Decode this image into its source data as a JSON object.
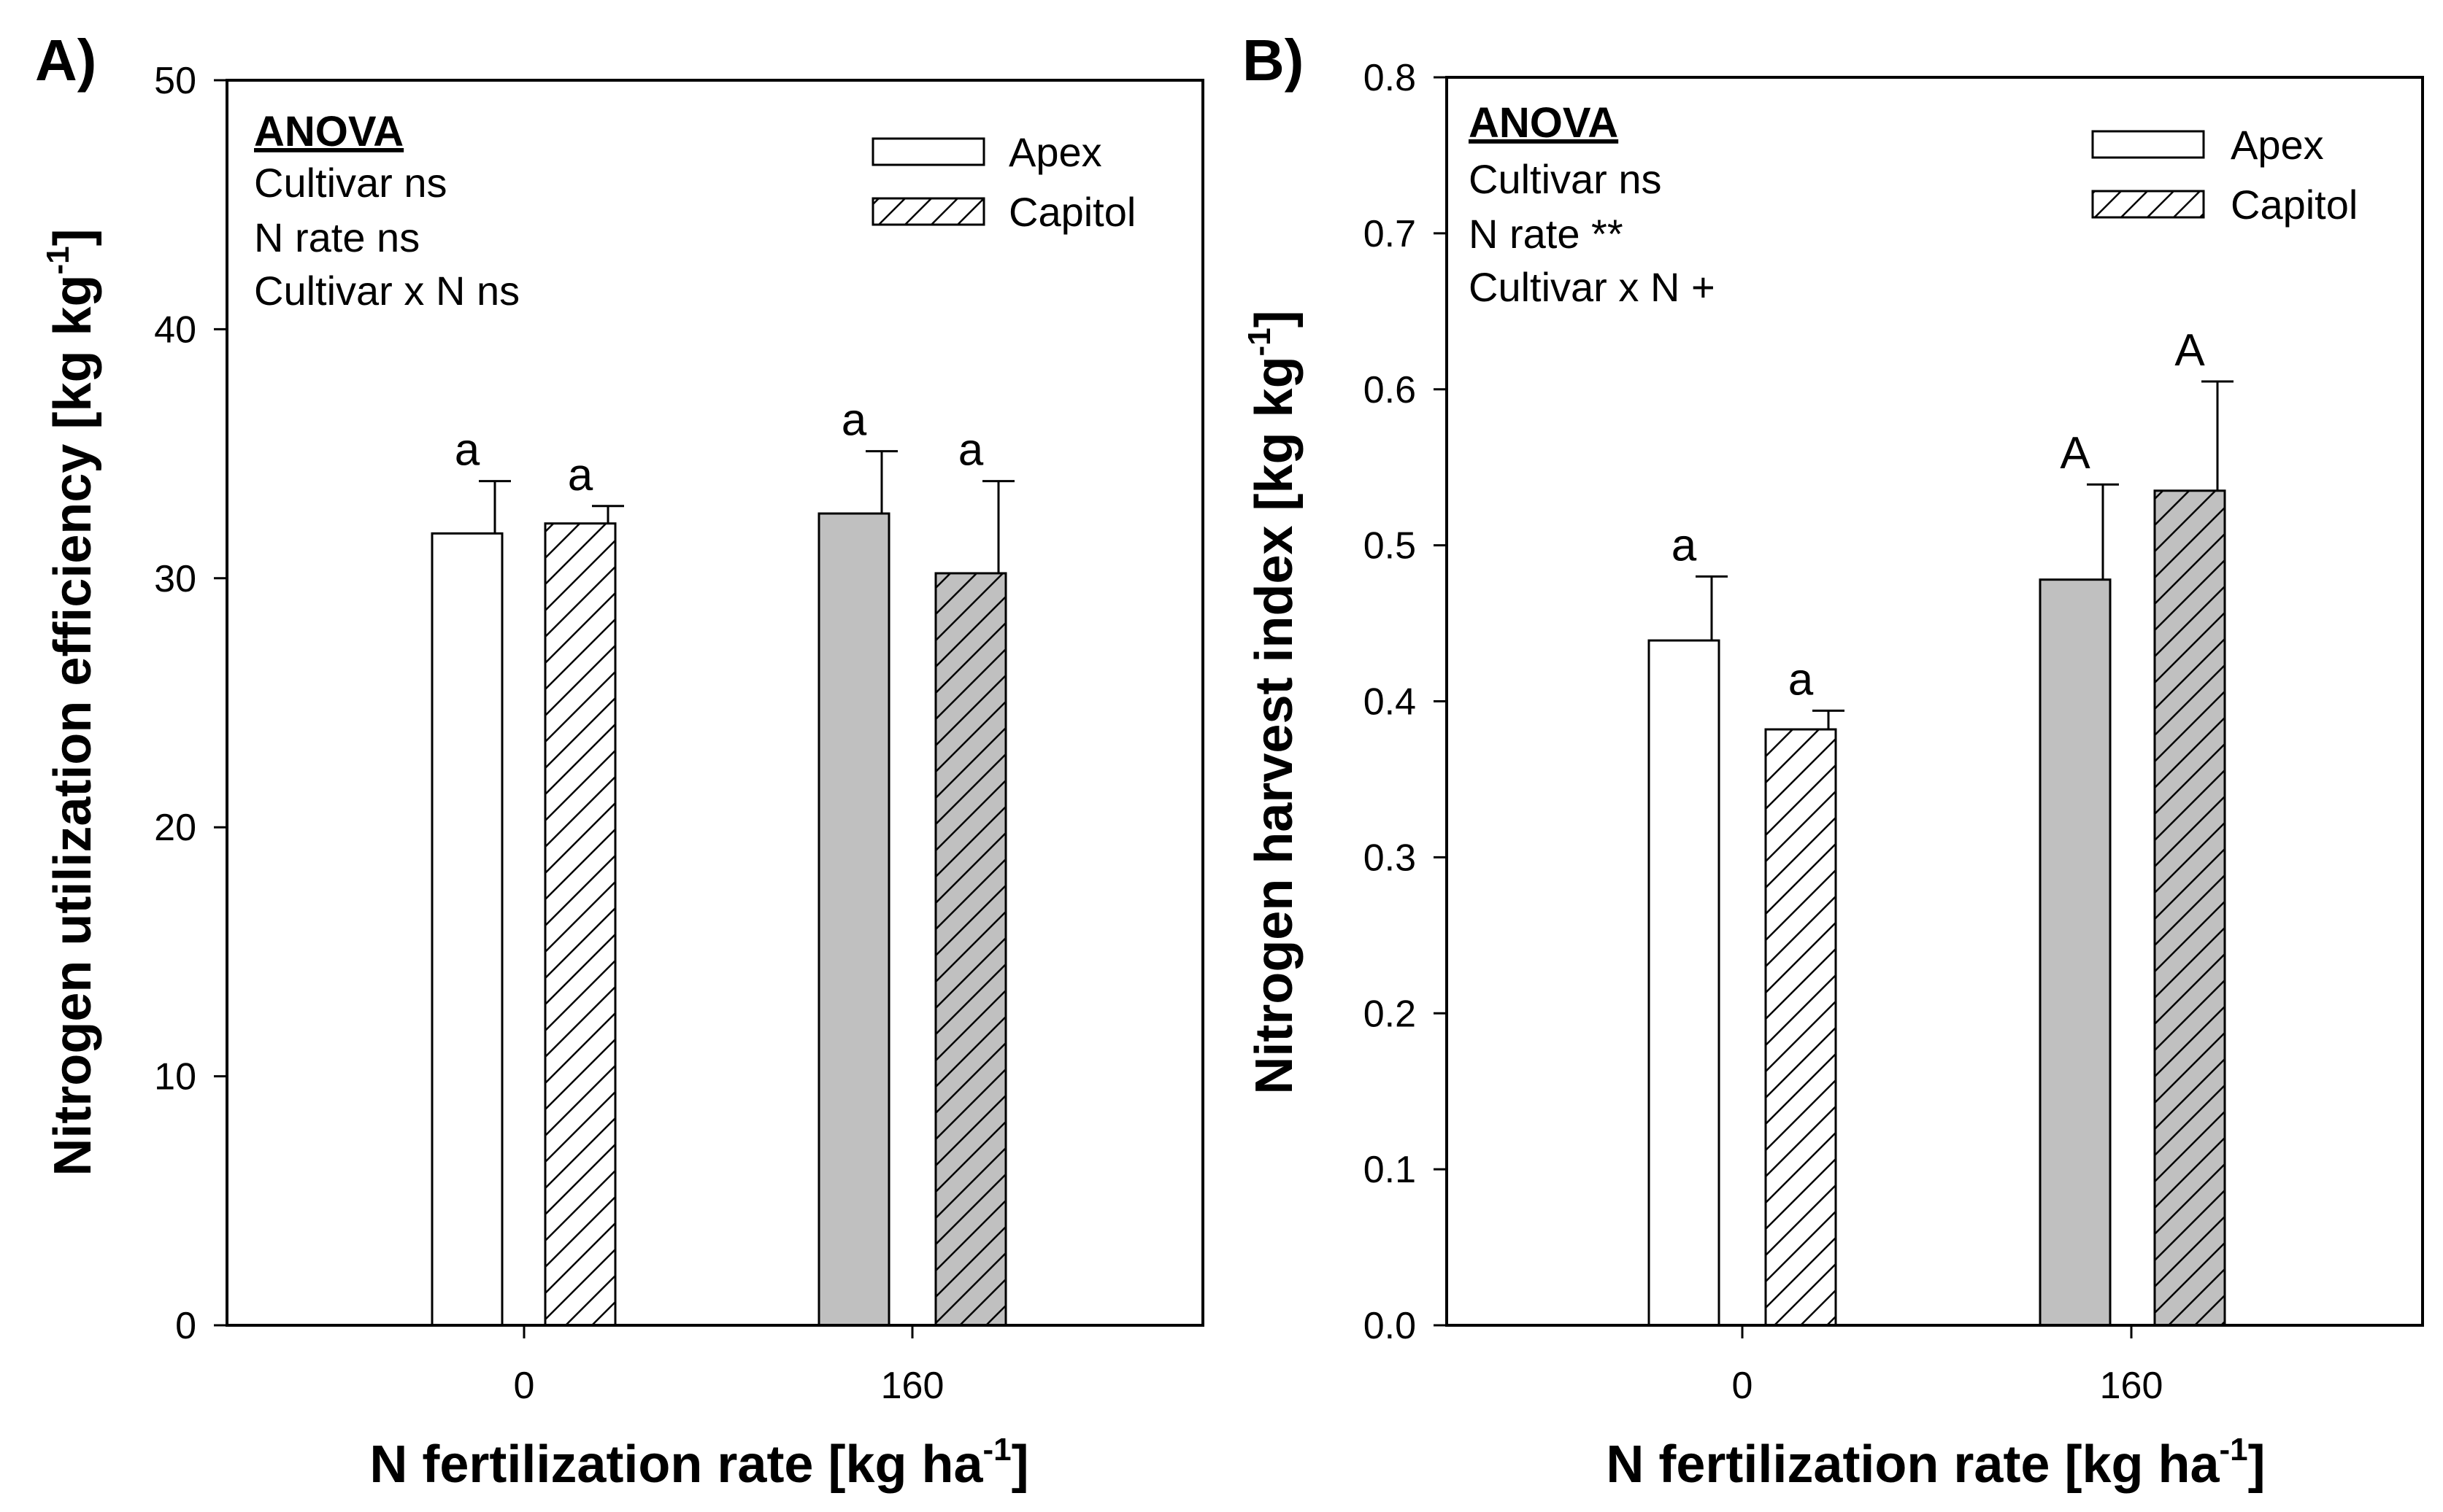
{
  "chart_data": [
    {
      "type": "bar",
      "panel_label": "A)",
      "xlabel": "N fertilization rate [kg ha",
      "xlabel_sup": "-1",
      "xlabel_suffix": "]",
      "ylabel": "Nitrogen utilization efficiency [kg kg",
      "ylabel_sup": "-1",
      "ylabel_suffix": "]",
      "ylim": [
        0,
        50
      ],
      "yticks": [
        0,
        10,
        20,
        30,
        40,
        50
      ],
      "ytick_labels": [
        "0",
        "10",
        "20",
        "30",
        "40",
        "50"
      ],
      "categories": [
        "0",
        "160"
      ],
      "series": [
        {
          "name": "Apex",
          "values": [
            31.8,
            32.6
          ],
          "errors": [
            2.1,
            2.5
          ],
          "letters": [
            "a",
            "a"
          ],
          "pattern": "plain"
        },
        {
          "name": "Capitol",
          "values": [
            32.2,
            30.2
          ],
          "errors": [
            0.7,
            3.7
          ],
          "letters": [
            "a",
            "a"
          ],
          "pattern": "hatched"
        }
      ],
      "category_fills": [
        "#ffffff",
        "#c0c0c0"
      ],
      "anova": {
        "title": "ANOVA",
        "lines": [
          "Cultivar ns",
          "N rate ns",
          "Cultivar x N ns"
        ]
      },
      "legend": [
        "Apex",
        "Capitol"
      ]
    },
    {
      "type": "bar",
      "panel_label": "B)",
      "xlabel": "N fertilization rate [kg ha",
      "xlabel_sup": "-1",
      "xlabel_suffix": "]",
      "ylabel": "Nitrogen harvest index [kg kg",
      "ylabel_sup": "-1",
      "ylabel_suffix": "]",
      "ylim": [
        0,
        0.8
      ],
      "yticks": [
        0,
        0.1,
        0.2,
        0.3,
        0.4,
        0.5,
        0.6,
        0.7,
        0.8
      ],
      "ytick_labels": [
        "0.0",
        "0.1",
        "0.2",
        "0.3",
        "0.4",
        "0.5",
        "0.6",
        "0.7",
        "0.8"
      ],
      "categories": [
        "0",
        "160"
      ],
      "series": [
        {
          "name": "Apex",
          "values": [
            0.439,
            0.478
          ],
          "errors": [
            0.041,
            0.061
          ],
          "letters": [
            "a",
            "A"
          ],
          "pattern": "plain"
        },
        {
          "name": "Capitol",
          "values": [
            0.382,
            0.535
          ],
          "errors": [
            0.012,
            0.07
          ],
          "letters": [
            "a",
            "A"
          ],
          "pattern": "hatched"
        }
      ],
      "category_fills": [
        "#ffffff",
        "#c0c0c0"
      ],
      "anova": {
        "title": "ANOVA",
        "lines": [
          "Cultivar ns",
          "N rate **",
          "Cultivar x N +"
        ]
      },
      "legend": [
        "Apex",
        "Capitol"
      ]
    }
  ]
}
